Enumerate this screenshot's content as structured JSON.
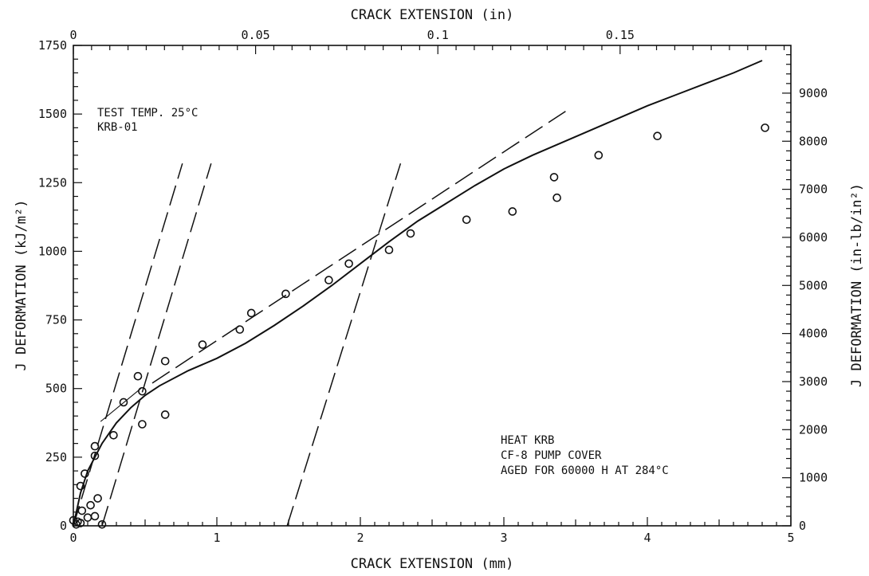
{
  "chart_data": {
    "type": "scatter",
    "xlabel": "CRACK EXTENSION (mm)",
    "x2label": "CRACK EXTENSION (in)",
    "ylabel": "J DEFORMATION (kJ/m²)",
    "y2label": "J DEFORMATION (in-lb/in²)",
    "xlim": [
      0,
      5
    ],
    "ylim": [
      0,
      1750
    ],
    "x2lim": [
      0,
      0.19685
    ],
    "y2lim": [
      0,
      9993
    ],
    "x_ticks": [
      "0",
      "1",
      "2",
      "3",
      "4",
      "5"
    ],
    "y_ticks": [
      "0",
      "250",
      "500",
      "750",
      "1000",
      "1250",
      "1500",
      "1750"
    ],
    "x2_ticks": [
      "0",
      "0.05",
      "0.1",
      "0.15"
    ],
    "y2_ticks": [
      "0",
      "1000",
      "2000",
      "3000",
      "4000",
      "5000",
      "6000",
      "7000",
      "8000",
      "9000"
    ],
    "grid": false,
    "annotations": {
      "test": [
        "TEST TEMP. 25°C",
        "KRB-01"
      ],
      "heat": [
        "HEAT KRB",
        "CF-8 PUMP COVER",
        "AGED FOR 60000 H AT 284°C"
      ]
    },
    "points": [
      [
        0.0,
        20
      ],
      [
        0.02,
        5
      ],
      [
        0.03,
        15
      ],
      [
        0.05,
        10
      ],
      [
        0.05,
        145
      ],
      [
        0.06,
        55
      ],
      [
        0.08,
        190
      ],
      [
        0.1,
        30
      ],
      [
        0.12,
        75
      ],
      [
        0.15,
        35
      ],
      [
        0.15,
        290
      ],
      [
        0.15,
        255
      ],
      [
        0.17,
        100
      ],
      [
        0.2,
        5
      ],
      [
        0.28,
        330
      ],
      [
        0.35,
        450
      ],
      [
        0.45,
        545
      ],
      [
        0.48,
        370
      ],
      [
        0.48,
        490
      ],
      [
        0.64,
        405
      ],
      [
        0.64,
        600
      ],
      [
        0.9,
        660
      ],
      [
        1.16,
        715
      ],
      [
        1.24,
        775
      ],
      [
        1.48,
        845
      ],
      [
        1.78,
        895
      ],
      [
        1.92,
        955
      ],
      [
        2.2,
        1005
      ],
      [
        2.35,
        1065
      ],
      [
        2.74,
        1115
      ],
      [
        3.06,
        1145
      ],
      [
        3.35,
        1270
      ],
      [
        3.37,
        1195
      ],
      [
        3.66,
        1350
      ],
      [
        4.07,
        1420
      ],
      [
        4.82,
        1450
      ]
    ],
    "fit_curve": [
      [
        0.0,
        0
      ],
      [
        0.05,
        120
      ],
      [
        0.1,
        200
      ],
      [
        0.2,
        300
      ],
      [
        0.3,
        375
      ],
      [
        0.4,
        430
      ],
      [
        0.5,
        475
      ],
      [
        0.6,
        510
      ],
      [
        0.8,
        565
      ],
      [
        1.0,
        610
      ],
      [
        1.2,
        665
      ],
      [
        1.4,
        730
      ],
      [
        1.6,
        800
      ],
      [
        1.8,
        875
      ],
      [
        2.0,
        955
      ],
      [
        2.2,
        1035
      ],
      [
        2.4,
        1110
      ],
      [
        2.6,
        1175
      ],
      [
        2.8,
        1240
      ],
      [
        3.0,
        1300
      ],
      [
        3.2,
        1350
      ],
      [
        3.4,
        1395
      ],
      [
        3.6,
        1440
      ],
      [
        3.8,
        1485
      ],
      [
        4.0,
        1530
      ],
      [
        4.2,
        1570
      ],
      [
        4.4,
        1610
      ],
      [
        4.6,
        1650
      ],
      [
        4.8,
        1695
      ]
    ],
    "solid_segments": [
      [
        [
          0.19,
          380
        ],
        [
          0.47,
          500
        ]
      ]
    ],
    "dashed_lines": [
      [
        [
          0.0,
          0
        ],
        [
          0.76,
          1320
        ]
      ],
      [
        [
          0.2,
          0
        ],
        [
          0.96,
          1320
        ]
      ],
      [
        [
          1.49,
          0
        ],
        [
          2.28,
          1320
        ]
      ],
      [
        [
          0.55,
          520
        ],
        [
          3.43,
          1510
        ]
      ]
    ]
  }
}
